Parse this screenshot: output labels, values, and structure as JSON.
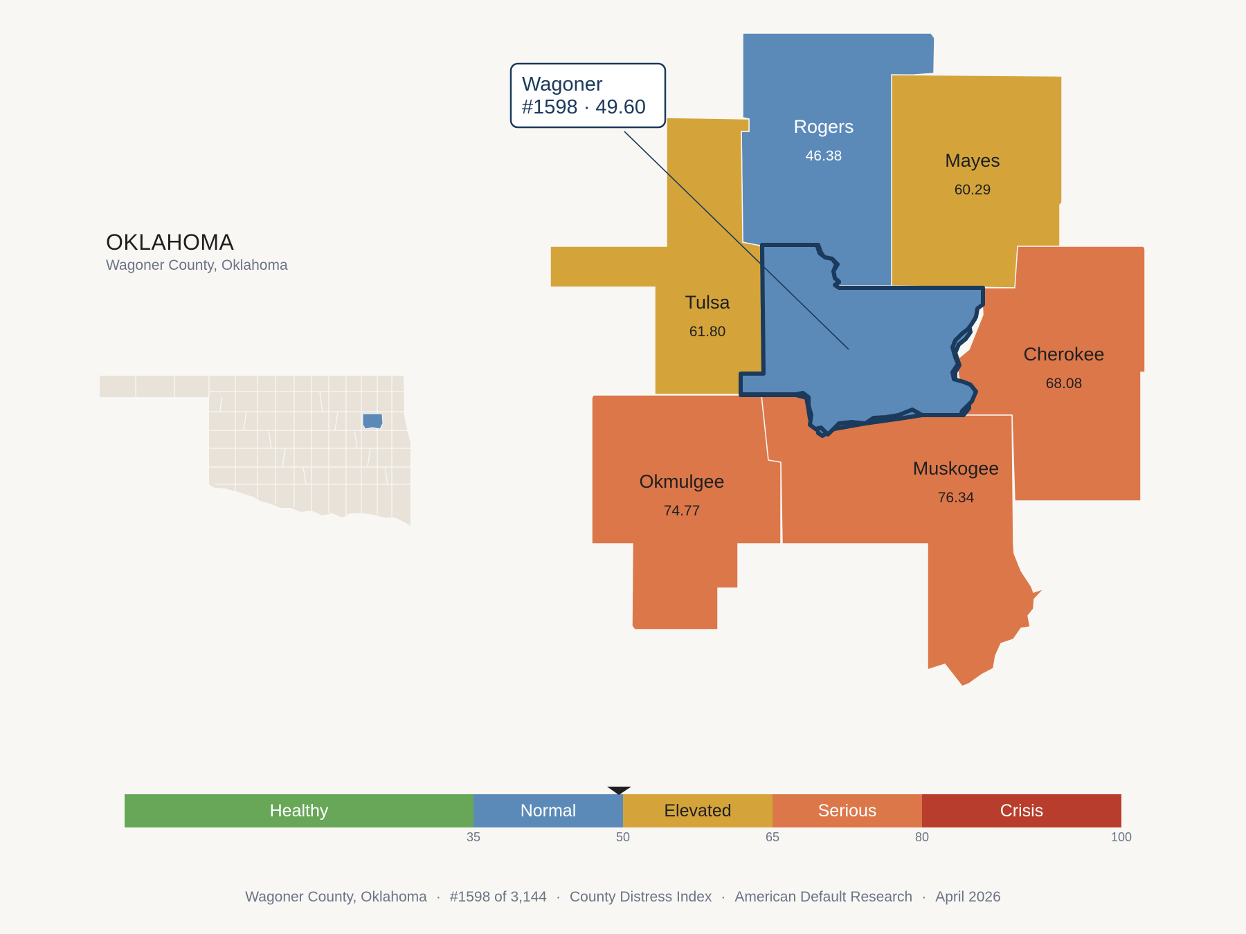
{
  "state": {
    "name": "OKLAHOMA",
    "subtitle": "Wagoner County, Oklahoma"
  },
  "callout": {
    "line1": "Wagoner",
    "line2": "#1598 · 49.60"
  },
  "counties": [
    {
      "id": "rogers",
      "name": "Rogers",
      "value": "46.38",
      "color": "#5b8ab9",
      "text": "#ffffff"
    },
    {
      "id": "mayes",
      "name": "Mayes",
      "value": "60.29",
      "color": "#d4a43b",
      "text": "#1f1f1f"
    },
    {
      "id": "tulsa",
      "name": "Tulsa",
      "value": "61.80",
      "color": "#d4a43b",
      "text": "#1f1f1f"
    },
    {
      "id": "cherokee",
      "name": "Cherokee",
      "value": "68.08",
      "color": "#dc774a",
      "text": "#1f1f1f"
    },
    {
      "id": "okmulgee",
      "name": "Okmulgee",
      "value": "74.77",
      "color": "#dc774a",
      "text": "#1f1f1f"
    },
    {
      "id": "muskogee",
      "name": "Muskogee",
      "value": "76.34",
      "color": "#dc774a",
      "text": "#1f1f1f"
    },
    {
      "id": "wagoner",
      "name": "Wagoner",
      "value": "49.60",
      "color": "#5b8ab9",
      "text": "#1f1f1f"
    }
  ],
  "scale": {
    "bands": [
      {
        "label": "Healthy",
        "color": "#67a757",
        "text": "#ffffff"
      },
      {
        "label": "Normal",
        "color": "#5b8ab9",
        "text": "#ffffff"
      },
      {
        "label": "Elevated",
        "color": "#d4a43b",
        "text": "#1f1f1f"
      },
      {
        "label": "Serious",
        "color": "#dc774a",
        "text": "#ffffff"
      },
      {
        "label": "Crisis",
        "color": "#b93d2c",
        "text": "#ffffff"
      }
    ],
    "ticks": [
      "35",
      "50",
      "65",
      "80",
      "100"
    ],
    "marker_value": 49.6
  },
  "colors": {
    "highlight_outline": "#1b3a5c",
    "inset_fill": "#e8e2d9",
    "inset_highlight": "#5b8ab9",
    "background": "#f9f7f4"
  },
  "footer": {
    "county": "Wagoner County, Oklahoma",
    "rank": "#1598 of 3,144",
    "index": "County Distress Index",
    "source": "American Default Research",
    "date": "April 2026"
  }
}
